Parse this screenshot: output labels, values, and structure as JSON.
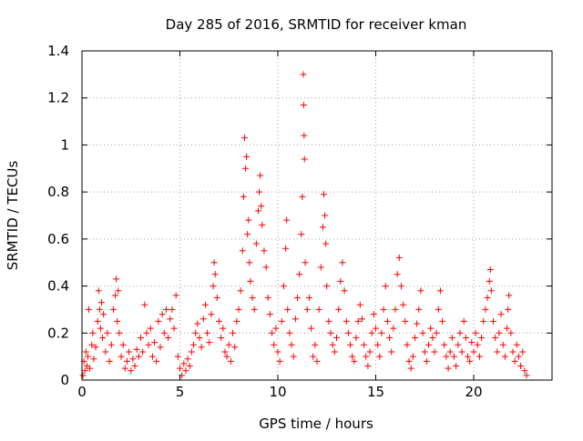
{
  "chart_data": {
    "type": "scatter",
    "title": "Day 285 of 2016, SRMTID for receiver kman",
    "xlabel": "GPS time / hours",
    "ylabel": "SRMTID / TECUs",
    "xlim": [
      0,
      24
    ],
    "ylim": [
      0,
      1.4
    ],
    "xticks": [
      0,
      5,
      10,
      15,
      20
    ],
    "xtick_labels": [
      "0",
      "5",
      "10",
      "15",
      "20"
    ],
    "yticks": [
      0,
      0.2,
      0.4,
      0.6,
      0.8,
      1.0,
      1.2,
      1.4
    ],
    "ytick_labels": [
      "0",
      "0.2",
      "0.4",
      "0.6",
      "0.8",
      "1",
      "1.2",
      "1.4"
    ],
    "grid": true,
    "marker": "+",
    "color": "#ff0000",
    "series": [
      {
        "name": "SRMTID",
        "points": [
          [
            0.05,
            0.02
          ],
          [
            0.1,
            0.08
          ],
          [
            0.15,
            0.04
          ],
          [
            0.2,
            0.12
          ],
          [
            0.25,
            0.06
          ],
          [
            0.3,
            0.1
          ],
          [
            0.35,
            0.3
          ],
          [
            0.4,
            0.05
          ],
          [
            0.5,
            0.15
          ],
          [
            0.55,
            0.2
          ],
          [
            0.6,
            0.09
          ],
          [
            0.7,
            0.14
          ],
          [
            0.8,
            0.25
          ],
          [
            0.85,
            0.38
          ],
          [
            0.9,
            0.3
          ],
          [
            0.95,
            0.22
          ],
          [
            1.0,
            0.33
          ],
          [
            1.05,
            0.18
          ],
          [
            1.1,
            0.28
          ],
          [
            1.2,
            0.12
          ],
          [
            1.3,
            0.2
          ],
          [
            1.4,
            0.08
          ],
          [
            1.5,
            0.15
          ],
          [
            1.6,
            0.3
          ],
          [
            1.7,
            0.36
          ],
          [
            1.75,
            0.43
          ],
          [
            1.8,
            0.25
          ],
          [
            1.85,
            0.38
          ],
          [
            1.9,
            0.2
          ],
          [
            2.0,
            0.1
          ],
          [
            2.1,
            0.15
          ],
          [
            2.2,
            0.05
          ],
          [
            2.3,
            0.08
          ],
          [
            2.4,
            0.12
          ],
          [
            2.5,
            0.04
          ],
          [
            2.6,
            0.09
          ],
          [
            2.7,
            0.06
          ],
          [
            2.8,
            0.13
          ],
          [
            2.9,
            0.1
          ],
          [
            3.0,
            0.18
          ],
          [
            3.1,
            0.12
          ],
          [
            3.2,
            0.32
          ],
          [
            3.3,
            0.2
          ],
          [
            3.4,
            0.15
          ],
          [
            3.5,
            0.22
          ],
          [
            3.6,
            0.1
          ],
          [
            3.7,
            0.16
          ],
          [
            3.8,
            0.08
          ],
          [
            3.9,
            0.25
          ],
          [
            4.0,
            0.14
          ],
          [
            4.1,
            0.28
          ],
          [
            4.2,
            0.2
          ],
          [
            4.3,
            0.3
          ],
          [
            4.4,
            0.18
          ],
          [
            4.5,
            0.26
          ],
          [
            4.6,
            0.3
          ],
          [
            4.7,
            0.22
          ],
          [
            4.8,
            0.36
          ],
          [
            4.9,
            0.1
          ],
          [
            5.0,
            0.05
          ],
          [
            5.1,
            0.02
          ],
          [
            5.2,
            0.07
          ],
          [
            5.3,
            0.04
          ],
          [
            5.4,
            0.09
          ],
          [
            5.5,
            0.06
          ],
          [
            5.6,
            0.12
          ],
          [
            5.7,
            0.15
          ],
          [
            5.8,
            0.2
          ],
          [
            5.9,
            0.24
          ],
          [
            6.0,
            0.18
          ],
          [
            6.1,
            0.14
          ],
          [
            6.2,
            0.26
          ],
          [
            6.3,
            0.32
          ],
          [
            6.4,
            0.2
          ],
          [
            6.5,
            0.16
          ],
          [
            6.6,
            0.28
          ],
          [
            6.7,
            0.4
          ],
          [
            6.75,
            0.5
          ],
          [
            6.8,
            0.45
          ],
          [
            6.9,
            0.35
          ],
          [
            7.0,
            0.25
          ],
          [
            7.1,
            0.18
          ],
          [
            7.2,
            0.22
          ],
          [
            7.3,
            0.12
          ],
          [
            7.4,
            0.1
          ],
          [
            7.5,
            0.15
          ],
          [
            7.6,
            0.08
          ],
          [
            7.7,
            0.2
          ],
          [
            7.8,
            0.14
          ],
          [
            7.9,
            0.25
          ],
          [
            8.0,
            0.3
          ],
          [
            8.1,
            0.38
          ],
          [
            8.2,
            0.55
          ],
          [
            8.25,
            0.78
          ],
          [
            8.3,
            1.03
          ],
          [
            8.35,
            0.9
          ],
          [
            8.4,
            0.95
          ],
          [
            8.45,
            0.62
          ],
          [
            8.5,
            0.68
          ],
          [
            8.55,
            0.5
          ],
          [
            8.6,
            0.42
          ],
          [
            8.7,
            0.35
          ],
          [
            8.8,
            0.3
          ],
          [
            8.9,
            0.58
          ],
          [
            9.0,
            0.72
          ],
          [
            9.05,
            0.8
          ],
          [
            9.1,
            0.87
          ],
          [
            9.15,
            0.74
          ],
          [
            9.2,
            0.66
          ],
          [
            9.3,
            0.55
          ],
          [
            9.4,
            0.48
          ],
          [
            9.5,
            0.35
          ],
          [
            9.6,
            0.28
          ],
          [
            9.7,
            0.2
          ],
          [
            9.8,
            0.15
          ],
          [
            9.9,
            0.22
          ],
          [
            10.0,
            0.12
          ],
          [
            10.1,
            0.08
          ],
          [
            10.2,
            0.25
          ],
          [
            10.3,
            0.4
          ],
          [
            10.4,
            0.56
          ],
          [
            10.45,
            0.68
          ],
          [
            10.5,
            0.3
          ],
          [
            10.6,
            0.2
          ],
          [
            10.7,
            0.15
          ],
          [
            10.8,
            0.1
          ],
          [
            10.9,
            0.26
          ],
          [
            11.0,
            0.35
          ],
          [
            11.1,
            0.45
          ],
          [
            11.2,
            0.62
          ],
          [
            11.25,
            0.78
          ],
          [
            11.3,
            1.3
          ],
          [
            11.32,
            1.17
          ],
          [
            11.34,
            1.04
          ],
          [
            11.36,
            0.94
          ],
          [
            11.4,
            0.5
          ],
          [
            11.5,
            0.3
          ],
          [
            11.6,
            0.35
          ],
          [
            11.7,
            0.22
          ],
          [
            11.8,
            0.1
          ],
          [
            11.9,
            0.15
          ],
          [
            12.0,
            0.08
          ],
          [
            12.1,
            0.3
          ],
          [
            12.2,
            0.48
          ],
          [
            12.3,
            0.65
          ],
          [
            12.35,
            0.79
          ],
          [
            12.4,
            0.7
          ],
          [
            12.45,
            0.58
          ],
          [
            12.5,
            0.4
          ],
          [
            12.6,
            0.25
          ],
          [
            12.7,
            0.2
          ],
          [
            12.8,
            0.15
          ],
          [
            12.9,
            0.12
          ],
          [
            13.0,
            0.18
          ],
          [
            13.1,
            0.3
          ],
          [
            13.2,
            0.42
          ],
          [
            13.3,
            0.5
          ],
          [
            13.4,
            0.38
          ],
          [
            13.5,
            0.25
          ],
          [
            13.6,
            0.2
          ],
          [
            13.7,
            0.15
          ],
          [
            13.8,
            0.1
          ],
          [
            13.9,
            0.08
          ],
          [
            14.0,
            0.18
          ],
          [
            14.1,
            0.25
          ],
          [
            14.2,
            0.32
          ],
          [
            14.3,
            0.26
          ],
          [
            14.4,
            0.15
          ],
          [
            14.5,
            0.1
          ],
          [
            14.6,
            0.06
          ],
          [
            14.7,
            0.12
          ],
          [
            14.8,
            0.2
          ],
          [
            14.9,
            0.28
          ],
          [
            15.0,
            0.22
          ],
          [
            15.1,
            0.15
          ],
          [
            15.2,
            0.1
          ],
          [
            15.3,
            0.2
          ],
          [
            15.4,
            0.3
          ],
          [
            15.5,
            0.4
          ],
          [
            15.6,
            0.25
          ],
          [
            15.7,
            0.18
          ],
          [
            15.8,
            0.12
          ],
          [
            15.9,
            0.22
          ],
          [
            16.0,
            0.3
          ],
          [
            16.1,
            0.45
          ],
          [
            16.2,
            0.52
          ],
          [
            16.3,
            0.4
          ],
          [
            16.4,
            0.32
          ],
          [
            16.5,
            0.25
          ],
          [
            16.6,
            0.15
          ],
          [
            16.7,
            0.08
          ],
          [
            16.8,
            0.05
          ],
          [
            16.9,
            0.1
          ],
          [
            17.0,
            0.18
          ],
          [
            17.1,
            0.24
          ],
          [
            17.2,
            0.3
          ],
          [
            17.3,
            0.38
          ],
          [
            17.4,
            0.2
          ],
          [
            17.5,
            0.12
          ],
          [
            17.6,
            0.08
          ],
          [
            17.7,
            0.15
          ],
          [
            17.8,
            0.22
          ],
          [
            17.9,
            0.18
          ],
          [
            18.0,
            0.12
          ],
          [
            18.1,
            0.2
          ],
          [
            18.2,
            0.3
          ],
          [
            18.3,
            0.38
          ],
          [
            18.4,
            0.25
          ],
          [
            18.5,
            0.15
          ],
          [
            18.6,
            0.1
          ],
          [
            18.7,
            0.05
          ],
          [
            18.8,
            0.12
          ],
          [
            18.9,
            0.18
          ],
          [
            19.0,
            0.1
          ],
          [
            19.1,
            0.06
          ],
          [
            19.2,
            0.15
          ],
          [
            19.3,
            0.2
          ],
          [
            19.4,
            0.12
          ],
          [
            19.5,
            0.25
          ],
          [
            19.6,
            0.18
          ],
          [
            19.7,
            0.1
          ],
          [
            19.8,
            0.08
          ],
          [
            19.9,
            0.16
          ],
          [
            20.0,
            0.12
          ],
          [
            20.1,
            0.2
          ],
          [
            20.2,
            0.15
          ],
          [
            20.3,
            0.1
          ],
          [
            20.4,
            0.18
          ],
          [
            20.5,
            0.25
          ],
          [
            20.6,
            0.3
          ],
          [
            20.7,
            0.35
          ],
          [
            20.8,
            0.42
          ],
          [
            20.85,
            0.47
          ],
          [
            20.9,
            0.38
          ],
          [
            21.0,
            0.25
          ],
          [
            21.1,
            0.18
          ],
          [
            21.2,
            0.12
          ],
          [
            21.3,
            0.2
          ],
          [
            21.4,
            0.28
          ],
          [
            21.5,
            0.15
          ],
          [
            21.6,
            0.1
          ],
          [
            21.7,
            0.22
          ],
          [
            21.75,
            0.3
          ],
          [
            21.8,
            0.36
          ],
          [
            21.9,
            0.2
          ],
          [
            22.0,
            0.12
          ],
          [
            22.1,
            0.08
          ],
          [
            22.2,
            0.15
          ],
          [
            22.3,
            0.1
          ],
          [
            22.4,
            0.06
          ],
          [
            22.5,
            0.12
          ],
          [
            22.6,
            0.04
          ],
          [
            22.7,
            0.02
          ]
        ]
      }
    ]
  }
}
